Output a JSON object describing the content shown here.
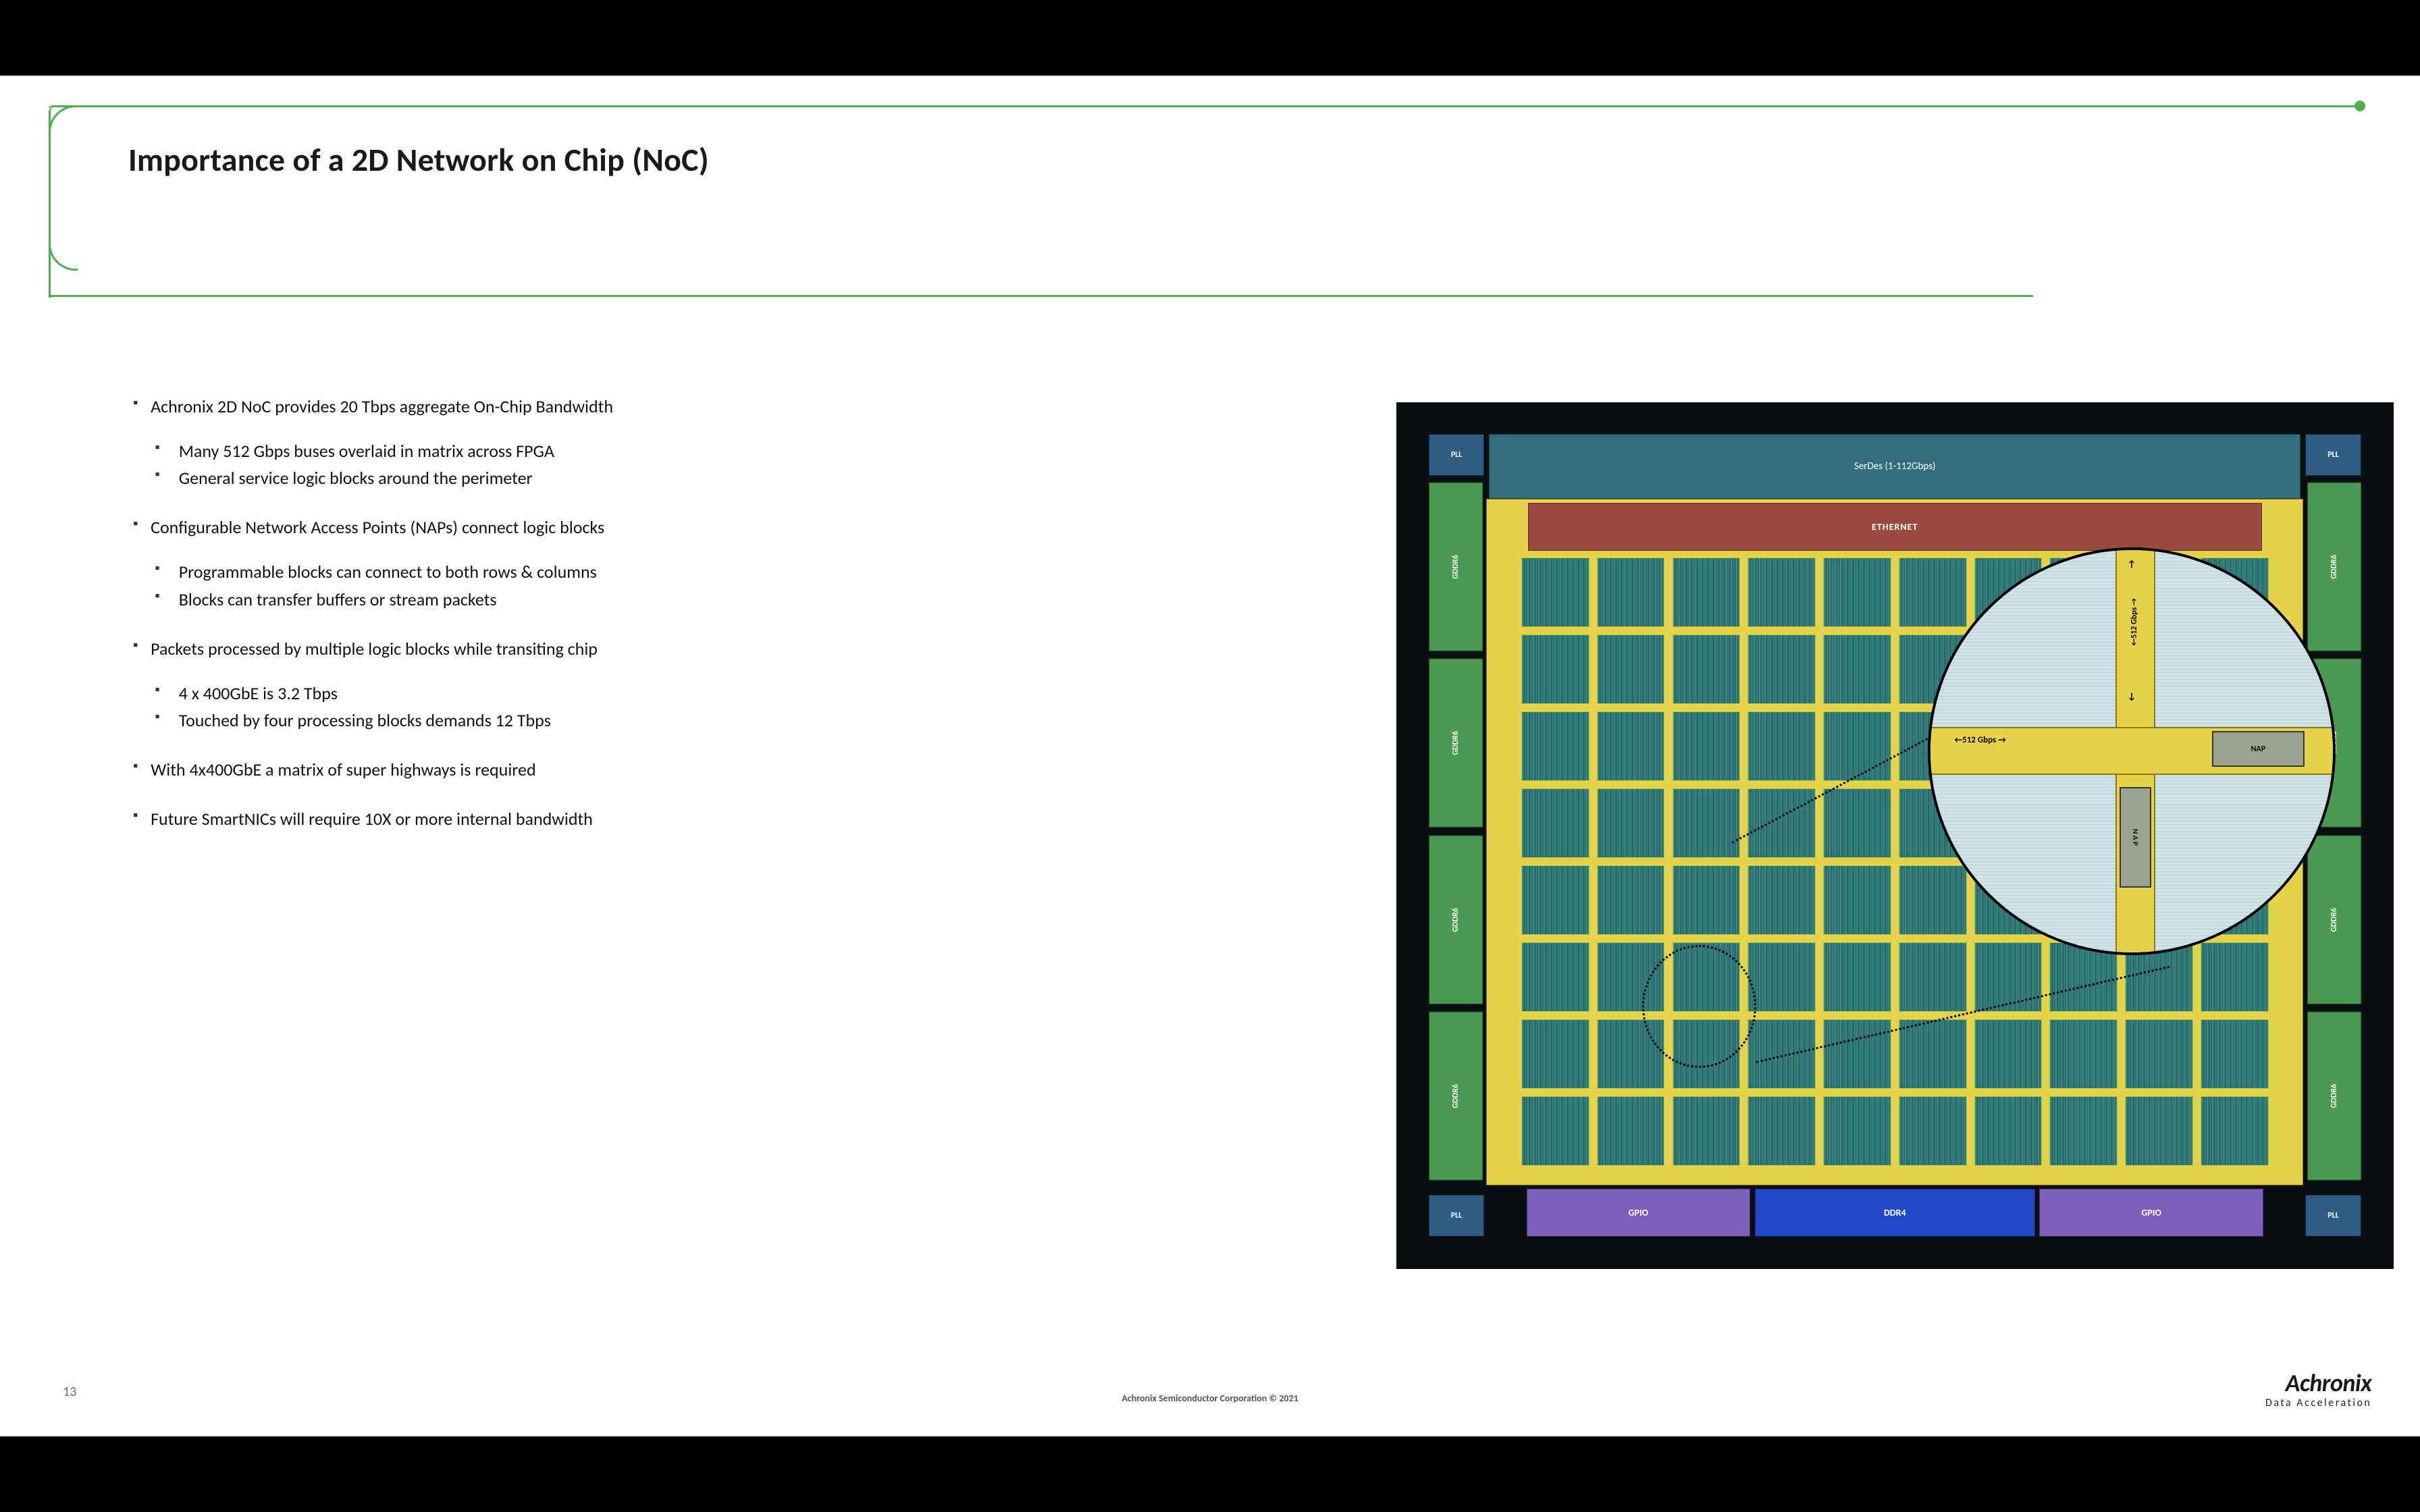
{
  "colors": {
    "accent_green": "#4caf50",
    "chip_bg": "#0a0f12",
    "pll_bg": "#2f5d86",
    "serdes_bg": "#2f6e7a",
    "ethernet_bg": "#9b4a3f",
    "gddr_bg": "#4c9a51",
    "gpio_bg": "#7b5fb8",
    "ddr4_bg": "#2148c6",
    "bus_yellow": "#e7d34b",
    "tile_teal": "#2f7a80",
    "tile_border_green": "#a4cf3c",
    "mag_bg": "#cfe2e5",
    "nap_fill": "#9aa38f"
  },
  "slide": {
    "title": "Importance of a 2D Network on Chip (NoC)",
    "page_number": "13",
    "copyright": "Achronix Semiconductor Corporation © 2021",
    "brand_name": "Achronix",
    "brand_tagline": "Data Acceleration"
  },
  "bullets": [
    {
      "text": "Achronix 2D NoC provides 20 Tbps aggregate On-Chip Bandwidth",
      "sub": [
        "Many 512 Gbps buses overlaid in matrix across FPGA",
        "General service logic blocks around the perimeter"
      ]
    },
    {
      "text": "Configurable Network Access Points (NAPs) connect logic blocks",
      "sub": [
        "Programmable blocks can connect to both rows & columns",
        "Blocks can transfer buffers or stream packets"
      ]
    },
    {
      "text": "Packets processed by multiple logic blocks while transiting chip",
      "sub": [
        "4 x 400GbE is 3.2 Tbps",
        "Touched by four processing blocks demands 12 Tbps"
      ]
    },
    {
      "text": "With 4x400GbE a matrix of super highways is required",
      "sub": []
    },
    {
      "text": "Future SmartNICs will require 10X or more internal bandwidth",
      "sub": []
    }
  ],
  "chip": {
    "pll_label": "PLL",
    "serdes_label": "SerDes (1-112Gbps)",
    "ethernet_label": "ETHERNET",
    "gddr_label": "GDDR6",
    "gpio_label": "GPIO",
    "ddr4_label": "DDR4",
    "grid": {
      "cols": 10,
      "rows": 8
    },
    "magnifier": {
      "h_label": "←512 Gbps →",
      "v_label": "←512 Gbps →",
      "nap_label": "NAP",
      "nap_v_label": "N A P",
      "arrow_up": "↑",
      "arrow_dn": "↓"
    }
  }
}
